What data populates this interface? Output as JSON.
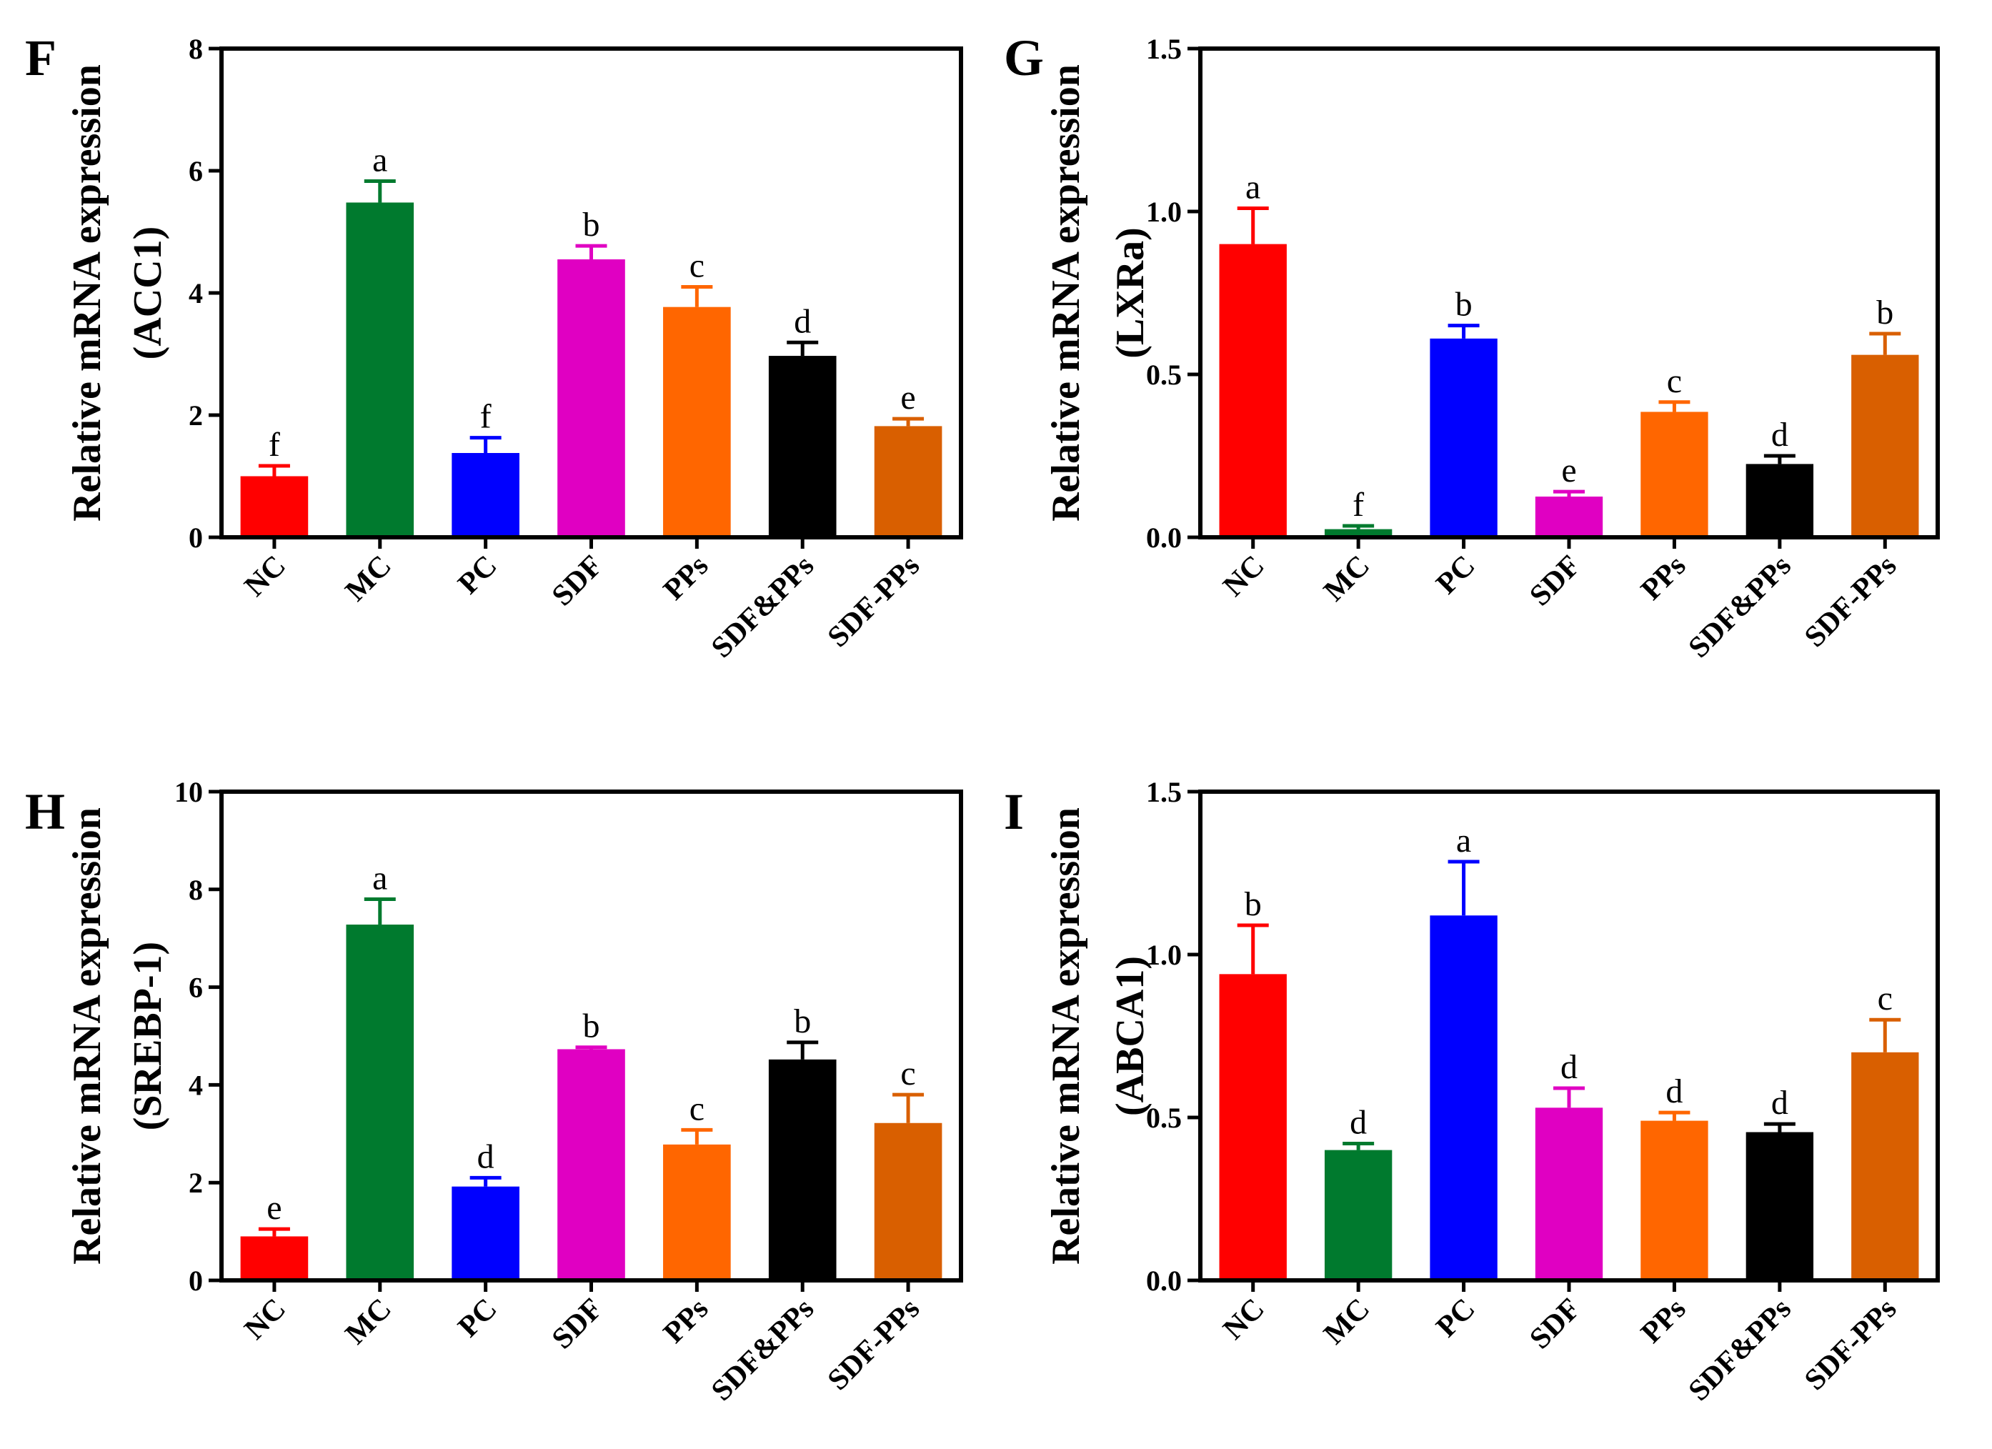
{
  "colors": [
    "#ff0000",
    "#007a2e",
    "#0000ff",
    "#e000c2",
    "#ff6600",
    "#000000",
    "#d95f00"
  ],
  "chart_data": [
    {
      "type": "bar",
      "panel": "F",
      "ylabel_lines": [
        "Relative mRNA expression",
        "(ACC1)"
      ],
      "categories": [
        "NC",
        "MC",
        "PC",
        "SDF",
        "PPs",
        "SDF&PPs",
        "SDF-PPs"
      ],
      "values": [
        1.0,
        5.48,
        1.38,
        4.55,
        3.77,
        2.97,
        1.82
      ],
      "errors": [
        0.17,
        0.35,
        0.25,
        0.22,
        0.33,
        0.22,
        0.12
      ],
      "significance": [
        "f",
        "a",
        "f",
        "b",
        "c",
        "d",
        "e"
      ],
      "ylim": [
        0,
        8
      ],
      "yticks": [
        0,
        2,
        4,
        6,
        8
      ],
      "ytick_labels": [
        "0",
        "2",
        "4",
        "6",
        "8"
      ]
    },
    {
      "type": "bar",
      "panel": "G",
      "ylabel_lines": [
        "Relative mRNA expression",
        "(LXRa)"
      ],
      "categories": [
        "NC",
        "MC",
        "PC",
        "SDF",
        "PPs",
        "SDF&PPs",
        "SDF-PPs"
      ],
      "values": [
        0.9,
        0.025,
        0.61,
        0.125,
        0.385,
        0.225,
        0.56
      ],
      "errors": [
        0.11,
        0.01,
        0.04,
        0.015,
        0.03,
        0.025,
        0.065
      ],
      "significance": [
        "a",
        "f",
        "b",
        "e",
        "c",
        "d",
        "b"
      ],
      "ylim": [
        0,
        1.5
      ],
      "yticks": [
        0,
        0.5,
        1.0,
        1.5
      ],
      "ytick_labels": [
        "0.0",
        "0.5",
        "1.0",
        "1.5"
      ]
    },
    {
      "type": "bar",
      "panel": "H",
      "ylabel_lines": [
        "Relative mRNA expression",
        "(SREBP-1)"
      ],
      "categories": [
        "NC",
        "MC",
        "PC",
        "SDF",
        "PPs",
        "SDF&PPs",
        "SDF-PPs"
      ],
      "values": [
        0.9,
        7.28,
        1.92,
        4.73,
        2.78,
        4.52,
        3.22
      ],
      "errors": [
        0.15,
        0.52,
        0.18,
        0.04,
        0.3,
        0.35,
        0.58
      ],
      "significance": [
        "e",
        "a",
        "d",
        "b",
        "c",
        "b",
        "c"
      ],
      "ylim": [
        0,
        10
      ],
      "yticks": [
        0,
        2,
        4,
        6,
        8,
        10
      ],
      "ytick_labels": [
        "0",
        "2",
        "4",
        "6",
        "8",
        "10"
      ]
    },
    {
      "type": "bar",
      "panel": "I",
      "ylabel_lines": [
        "Relative mRNA expression",
        "(ABCA1)"
      ],
      "categories": [
        "NC",
        "MC",
        "PC",
        "SDF",
        "PPs",
        "SDF&PPs",
        "SDF-PPs"
      ],
      "values": [
        0.94,
        0.4,
        1.12,
        0.53,
        0.49,
        0.455,
        0.7
      ],
      "errors": [
        0.15,
        0.02,
        0.165,
        0.06,
        0.025,
        0.025,
        0.1
      ],
      "significance": [
        "b",
        "d",
        "a",
        "d",
        "d",
        "d",
        "c"
      ],
      "ylim": [
        0,
        1.5
      ],
      "yticks": [
        0,
        0.5,
        1.0,
        1.5
      ],
      "ytick_labels": [
        "0.0",
        "0.5",
        "1.0",
        "1.5"
      ]
    }
  ]
}
